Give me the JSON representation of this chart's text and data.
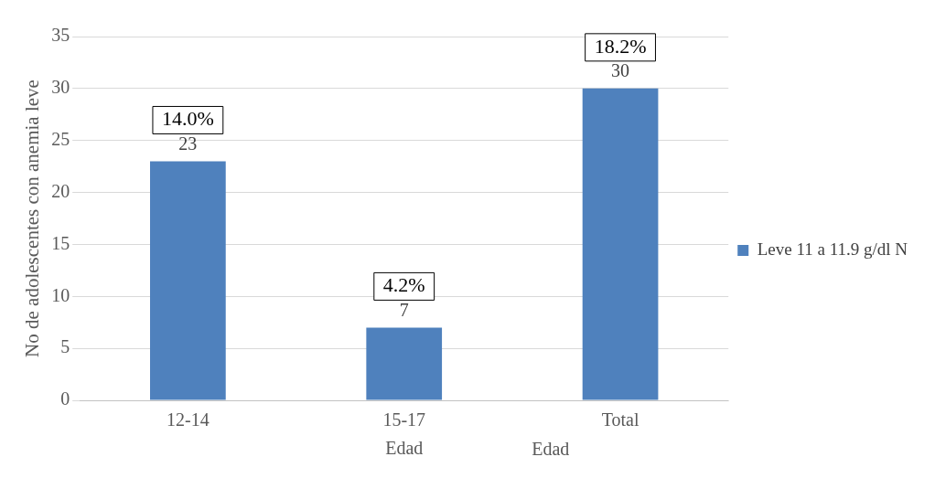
{
  "chart_data": {
    "type": "bar",
    "categories": [
      "12-14",
      "15-17",
      "Total"
    ],
    "series": [
      {
        "name": "Leve 11 a 11.9 g/dl N",
        "color": "#4f81bd",
        "values": [
          23,
          7,
          30
        ]
      }
    ],
    "ylim": [
      0,
      35
    ],
    "yticks": [
      0,
      5,
      10,
      15,
      20,
      25,
      30,
      35
    ],
    "grid": "y",
    "legend": "right",
    "data_labels": true,
    "xlabel": "Edad",
    "ylabel": "No de adolescentes con anemia leve",
    "annotations": [
      "14.0%",
      "4.2%",
      "18.2%",
      "Edad"
    ]
  }
}
